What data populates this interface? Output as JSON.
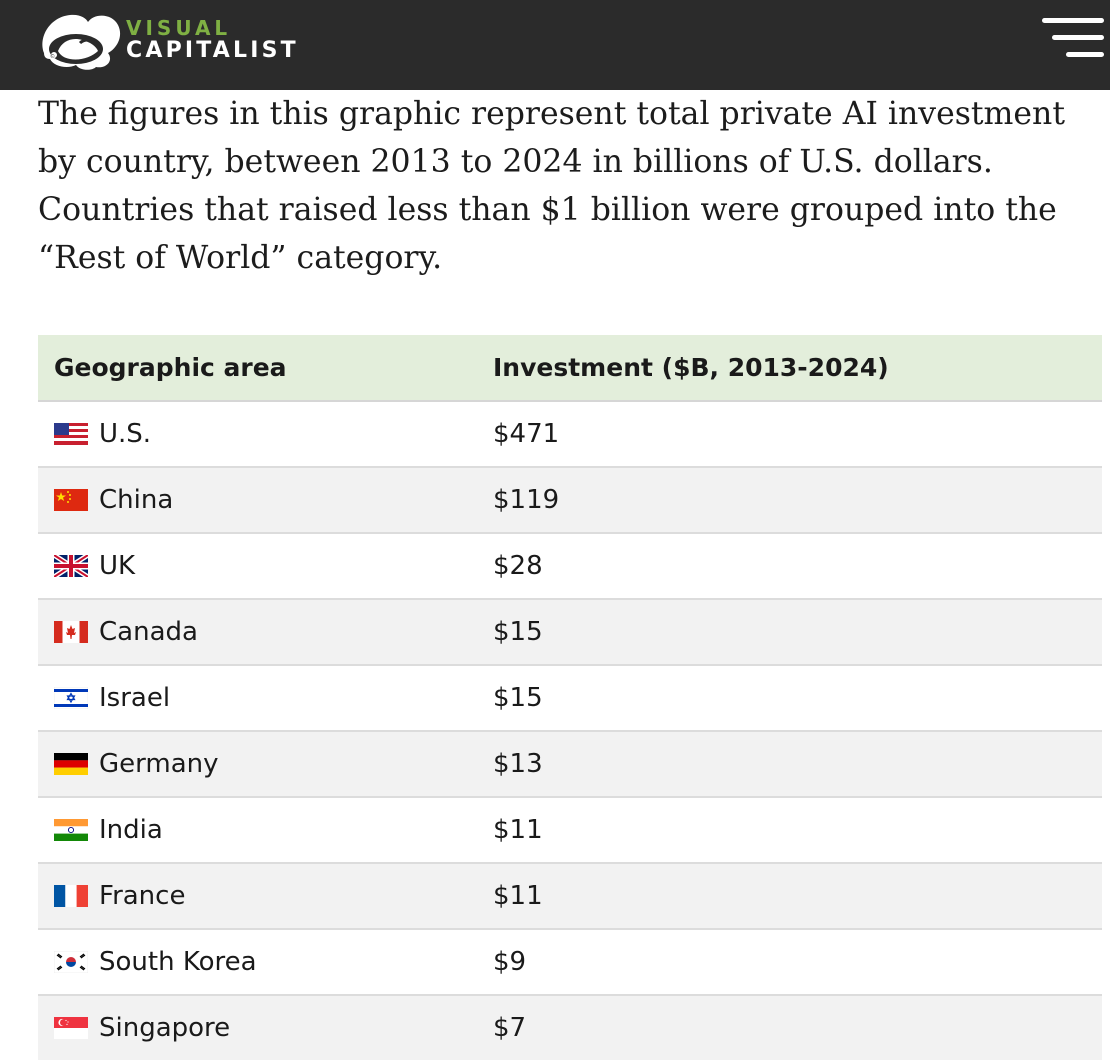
{
  "header": {
    "logo_top": "VISUAL",
    "logo_bottom": "CAPITALIST",
    "menu_icon": "hamburger-menu-icon",
    "colors": {
      "background": "#2b2b2b",
      "brand_green": "#7fb043"
    }
  },
  "intro": {
    "text": "The figures in this graphic represent total private AI investment by country, between 2013 to 2024 in billions of U.S. dollars. Countries that raised less than $1 billion were grouped into the “Rest of World” category."
  },
  "table": {
    "headers": [
      "Geographic area",
      "Investment ($B, 2013-2024)"
    ],
    "header_color": "#e3eedb",
    "rows": [
      {
        "country": "U.S.",
        "flag": "us-flag-icon",
        "investment": "$471"
      },
      {
        "country": "China",
        "flag": "china-flag-icon",
        "investment": "$119"
      },
      {
        "country": "UK",
        "flag": "uk-flag-icon",
        "investment": "$28"
      },
      {
        "country": "Canada",
        "flag": "canada-flag-icon",
        "investment": "$15"
      },
      {
        "country": "Israel",
        "flag": "israel-flag-icon",
        "investment": "$15"
      },
      {
        "country": "Germany",
        "flag": "germany-flag-icon",
        "investment": "$13"
      },
      {
        "country": "India",
        "flag": "india-flag-icon",
        "investment": "$11"
      },
      {
        "country": "France",
        "flag": "france-flag-icon",
        "investment": "$11"
      },
      {
        "country": "South Korea",
        "flag": "south-korea-flag-icon",
        "investment": "$9"
      },
      {
        "country": "Singapore",
        "flag": "singapore-flag-icon",
        "investment": "$7"
      }
    ]
  }
}
